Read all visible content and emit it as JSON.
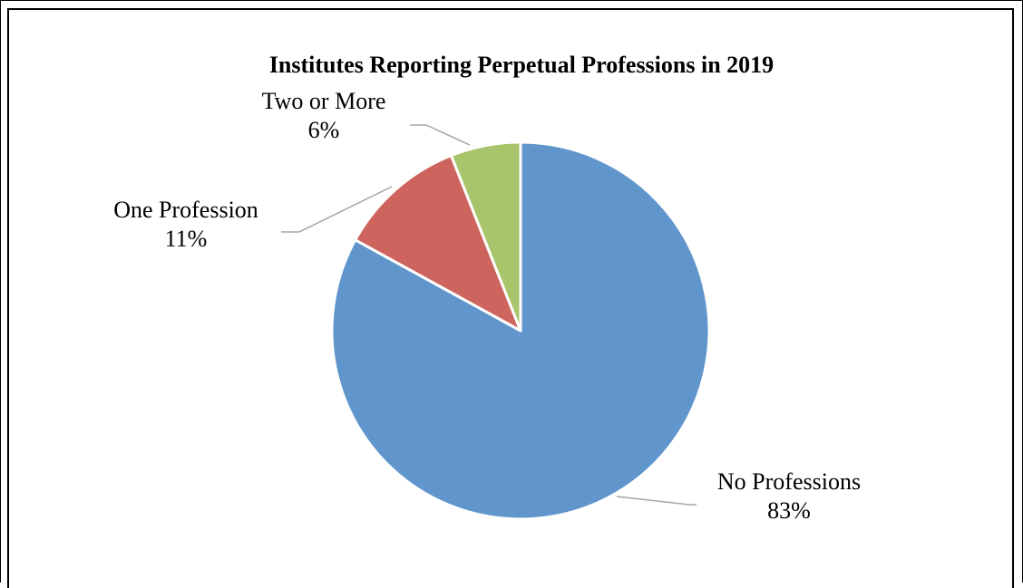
{
  "chart_data": {
    "type": "pie",
    "title": "Institutes Reporting Perpetual Professions in 2019",
    "categories": [
      "No Professions",
      "One Profession",
      "Two or More"
    ],
    "values": [
      83,
      11,
      6
    ],
    "labels": [
      "83%",
      "11%",
      "6%"
    ],
    "colors": [
      "#6096cc",
      "#cd645d",
      "#a9c56b"
    ],
    "start_angle": "12 o'clock",
    "direction": "clockwise",
    "label_placement": "outside-with-leader-lines",
    "legend": "none"
  }
}
